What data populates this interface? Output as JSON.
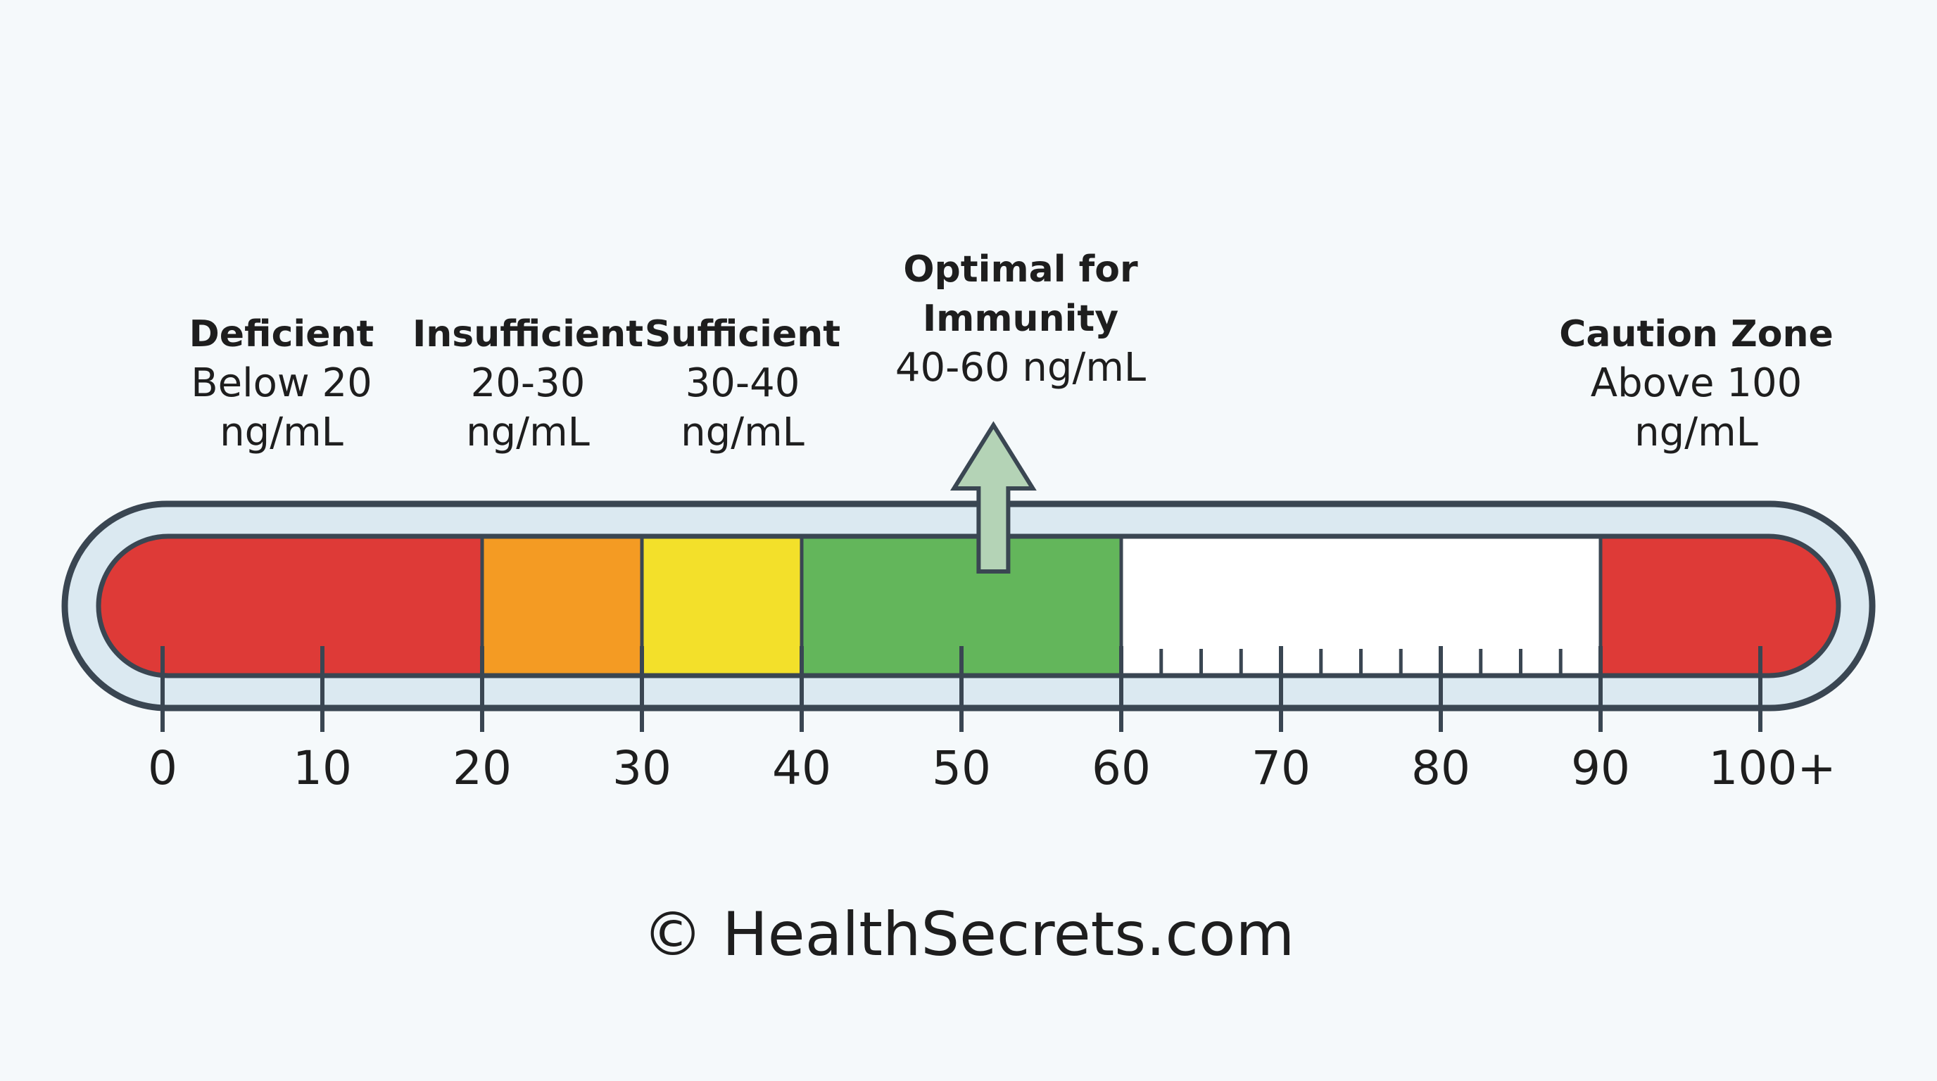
{
  "zones": [
    {
      "name": "Deficient",
      "range_line1": "Below 20",
      "range_line2": "ng/mL",
      "start": 0,
      "end": 20,
      "color": "#de3a37"
    },
    {
      "name": "Insufficient",
      "range_line1": "20-30",
      "range_line2": "ng/mL",
      "start": 20,
      "end": 30,
      "color": "#f49b23"
    },
    {
      "name": "Sufficient",
      "range_line1": "30-40",
      "range_line2": "ng/mL",
      "start": 30,
      "end": 40,
      "color": "#f3e02a"
    },
    {
      "name": "Optimal for Immunity",
      "name_line1": "Optimal for",
      "name_line2": "Immunity",
      "range_line1": "40-60 ng/mL",
      "start": 40,
      "end": 60,
      "color": "#63b65b"
    },
    {
      "name": "Caution Zone",
      "range_line1": "Above 100",
      "range_line2": "ng/mL",
      "start": 90,
      "end": 100,
      "color": "#de3a37"
    }
  ],
  "scale": {
    "min": 0,
    "max": 100,
    "major_ticks": [
      0,
      10,
      20,
      30,
      40,
      50,
      60,
      70,
      80,
      90,
      100
    ],
    "tick_labels": [
      "0",
      "10",
      "20",
      "30",
      "40",
      "50",
      "60",
      "70",
      "80",
      "90",
      "100+"
    ]
  },
  "optimal_marker_value": 52,
  "marker_color": "#b4d3b6",
  "copyright": "© HealthSecrets.com"
}
